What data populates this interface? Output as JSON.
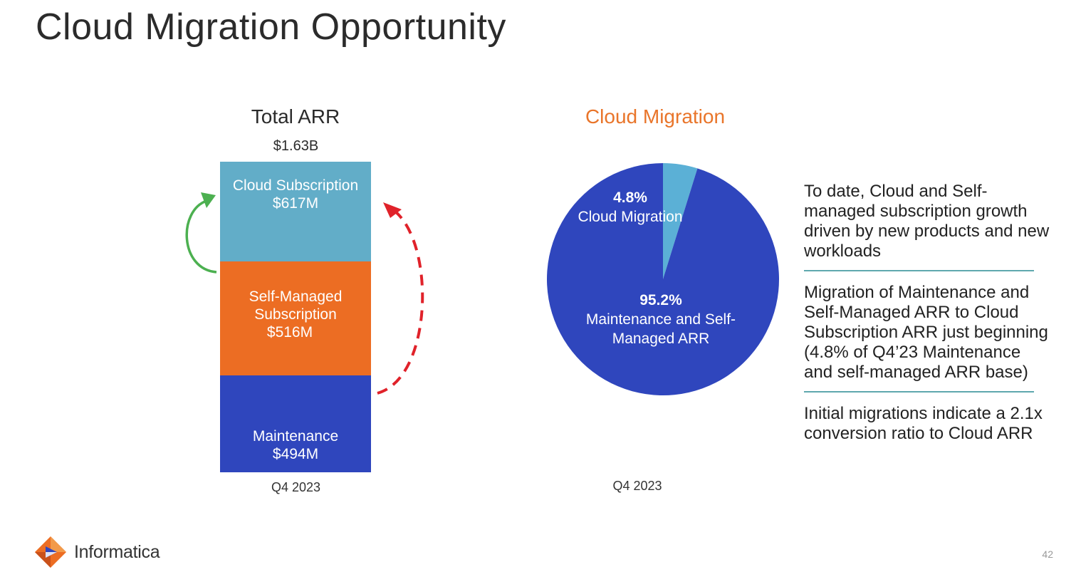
{
  "slide": {
    "title": "Cloud Migration Opportunity",
    "page_number": "42",
    "logo_text": "Informatica"
  },
  "colors": {
    "cloud": "#62adc8",
    "self_managed": "#ec6d23",
    "maintenance": "#2f46bd",
    "pie_small": "#5bb0d6",
    "green_arrow": "#4cb050",
    "red_arrow": "#e0222a",
    "orange_title": "#e9752a",
    "divider": "#5fa8ae"
  },
  "chart_data": [
    {
      "type": "bar",
      "title": "Total ARR",
      "total_label": "$1.63B",
      "categories": [
        "Q4 2023"
      ],
      "series": [
        {
          "name": "Maintenance",
          "value_label": "$494M",
          "values": [
            494
          ]
        },
        {
          "name": "Self-Managed Subscription",
          "name_lines": [
            "Self-Managed",
            "Subscription"
          ],
          "value_label": "$516M",
          "values": [
            516
          ]
        },
        {
          "name": "Cloud Subscription",
          "value_label": "$617M",
          "values": [
            617
          ]
        }
      ],
      "stacked": true
    },
    {
      "type": "pie",
      "title": "Cloud Migration",
      "category": "Q4 2023",
      "slices": [
        {
          "name": "Cloud Migration",
          "percent_label": "4.8%",
          "value": 4.8
        },
        {
          "name": "Maintenance and Self-Managed ARR",
          "name_lines": [
            "Maintenance and Self-",
            "Managed ARR"
          ],
          "percent_label": "95.2%",
          "value": 95.2
        }
      ]
    }
  ],
  "bullets": [
    "To date, Cloud and Self-managed subscription growth driven by new products and new workloads",
    "Migration of Maintenance and Self-Managed ARR to Cloud Subscription ARR just beginning (4.8% of Q4’23 Maintenance and self-managed ARR base)",
    "Initial migrations indicate  a 2.1x conversion ratio to Cloud ARR"
  ]
}
